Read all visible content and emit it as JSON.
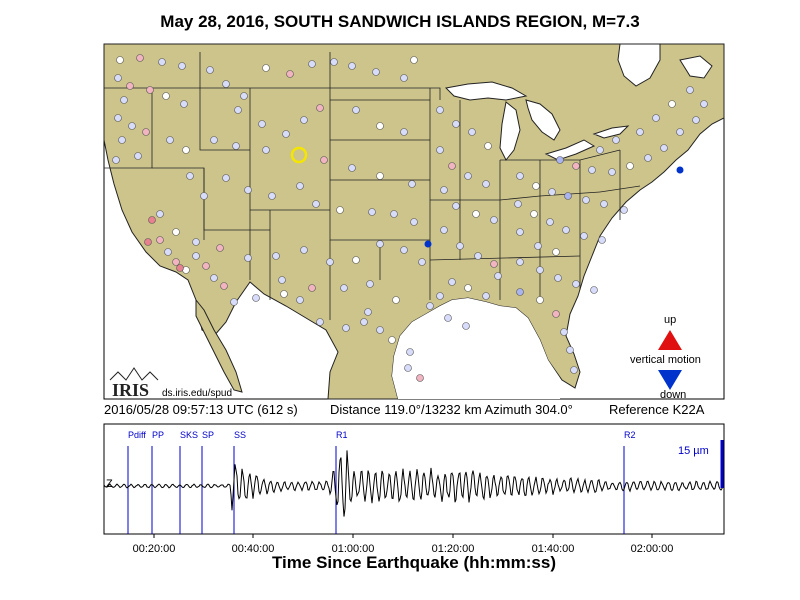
{
  "title": "May 28, 2016, SOUTH SANDWICH ISLANDS REGION, M=7.3",
  "map": {
    "logo_text": "IRIS",
    "credit": "ds.iris.edu/spud",
    "legend": {
      "up_label": "up",
      "middle_label": "vertical motion",
      "down_label": "down",
      "up_color": "#e01010",
      "down_color": "#0033cc"
    },
    "colors": {
      "land": "#cdc48c",
      "water": "#ffffff",
      "station_default": "#d8dcfb",
      "reference_ring": "#f5e600"
    }
  },
  "info": {
    "date": "2016/05/28 09:57:13 UTC (612 s)",
    "distance": "Distance 119.0°/13232 km  Azimuth 304.0°",
    "reference": "Reference K22A"
  },
  "seismogram": {
    "component": "Z",
    "scale_label": "15 µm",
    "phases": [
      "Pdiff",
      "PP",
      "SKS",
      "SP",
      "SS",
      "R1",
      "R2"
    ],
    "time_ticks": [
      "00:20:00",
      "00:40:00",
      "01:00:00",
      "01:20:00",
      "01:40:00",
      "02:00:00"
    ],
    "xlabel": "Time Since Earthquake (hh:mm:ss)",
    "trace_color": "#000000",
    "phase_color": "#0000cc"
  }
}
